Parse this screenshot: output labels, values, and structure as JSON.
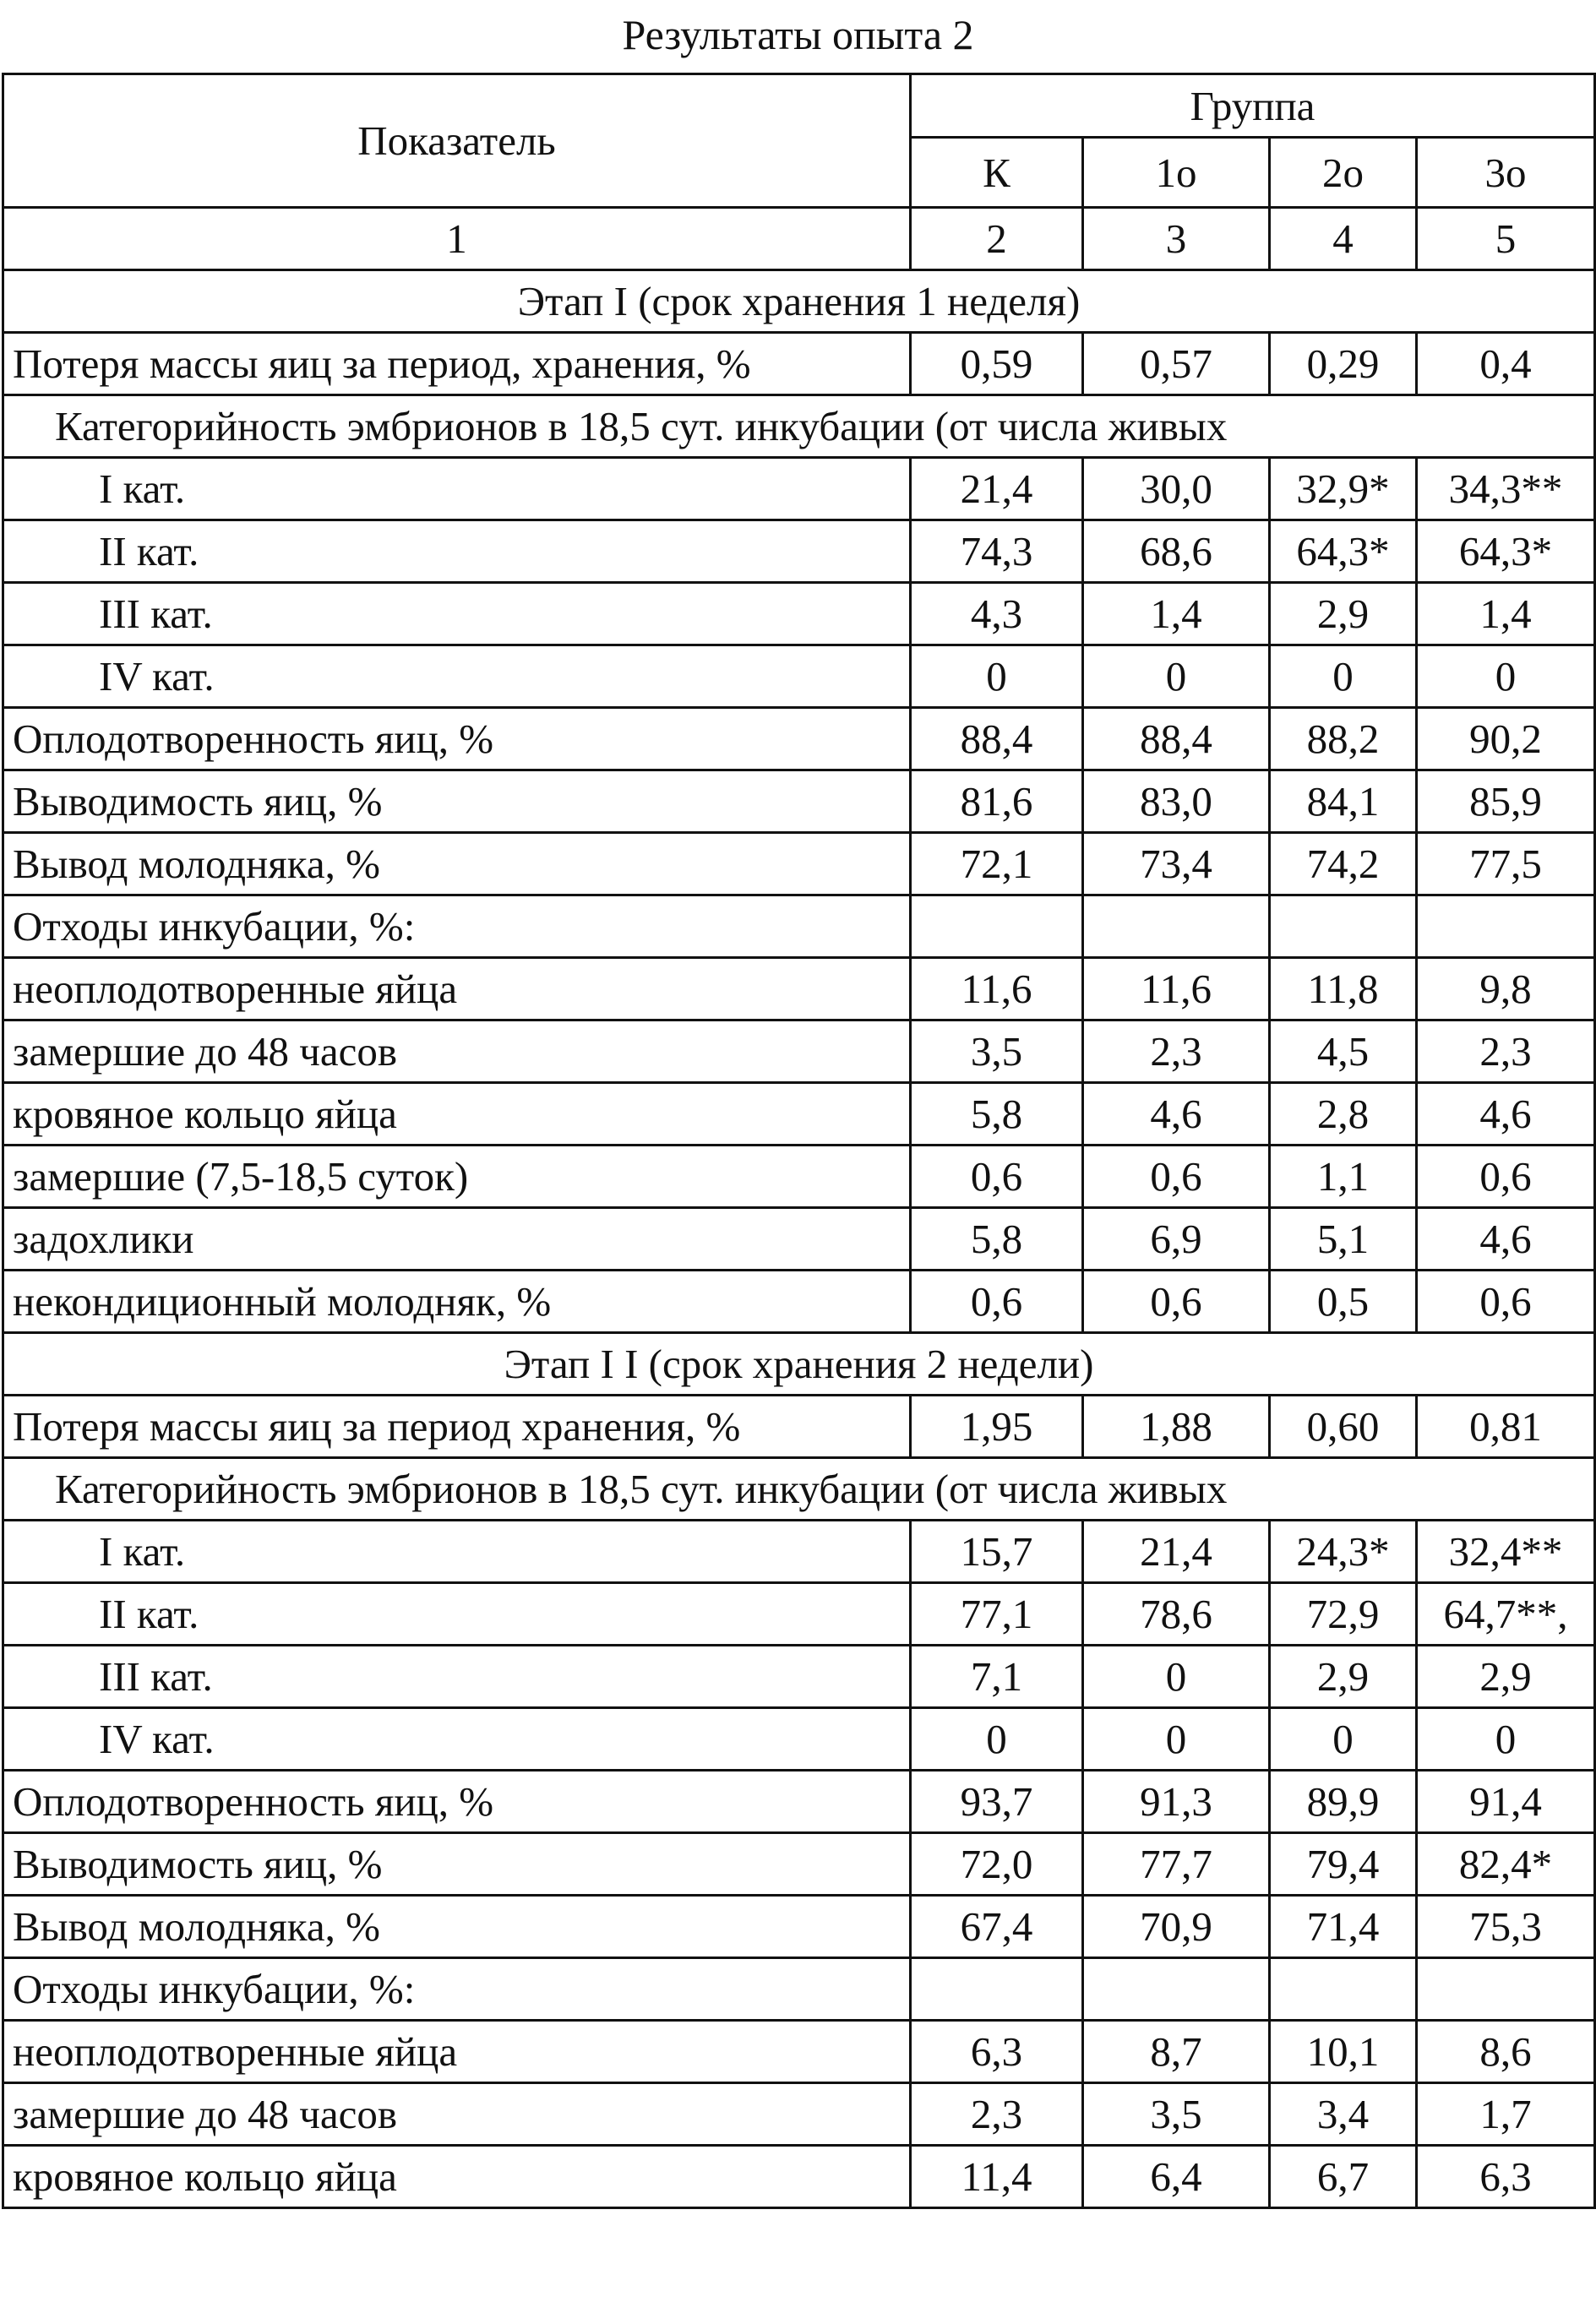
{
  "title": "Результаты опыта 2",
  "header": {
    "indicator": "Показатель",
    "group": "Группа",
    "groups": [
      "К",
      "1о",
      "2о",
      "3о"
    ],
    "numbers": [
      "1",
      "2",
      "3",
      "4",
      "5"
    ]
  },
  "rows": [
    {
      "type": "section",
      "label": "Этап I (срок хранения 1 неделя)"
    },
    {
      "type": "data",
      "label": "Потеря массы яиц за период, хранения, %",
      "values": [
        "0,59",
        "0,57",
        "0,29",
        "0,4"
      ]
    },
    {
      "type": "wide",
      "label": "Категорийность эмбрионов в 18,5 сут. инкубации (от числа живых"
    },
    {
      "type": "indent",
      "label": "I кат.",
      "values": [
        "21,4",
        "30,0",
        "32,9*",
        "34,3**"
      ]
    },
    {
      "type": "indent",
      "label": "II кат.",
      "values": [
        "74,3",
        "68,6",
        "64,3*",
        "64,3*"
      ]
    },
    {
      "type": "indent",
      "label": "III кат.",
      "values": [
        "4,3",
        "1,4",
        "2,9",
        "1,4"
      ]
    },
    {
      "type": "indent",
      "label": "IV кат.",
      "values": [
        "0",
        "0",
        "0",
        "0"
      ]
    },
    {
      "type": "data",
      "label": "Оплодотворенность яиц, %",
      "values": [
        "88,4",
        "88,4",
        "88,2",
        "90,2"
      ]
    },
    {
      "type": "data",
      "label": "Выводимость яиц, %",
      "values": [
        "81,6",
        "83,0",
        "84,1",
        "85,9"
      ]
    },
    {
      "type": "data",
      "label": "Вывод молодняка, %",
      "values": [
        "72,1",
        "73,4",
        "74,2",
        "77,5"
      ]
    },
    {
      "type": "data",
      "label": "Отходы инкубации, %:",
      "values": [
        "",
        "",
        "",
        ""
      ]
    },
    {
      "type": "data",
      "label": "неоплодотворенные яйца",
      "values": [
        "11,6",
        "11,6",
        "11,8",
        "9,8"
      ]
    },
    {
      "type": "data",
      "label": "замершие до 48 часов",
      "values": [
        "3,5",
        "2,3",
        "4,5",
        "2,3"
      ]
    },
    {
      "type": "data",
      "label": "кровяное кольцо яйца",
      "values": [
        "5,8",
        "4,6",
        "2,8",
        "4,6"
      ]
    },
    {
      "type": "data",
      "label": "замершие  (7,5-18,5 суток)",
      "values": [
        "0,6",
        "0,6",
        "1,1",
        "0,6"
      ]
    },
    {
      "type": "data",
      "label": "задохлики",
      "values": [
        "5,8",
        "6,9",
        "5,1",
        "4,6"
      ]
    },
    {
      "type": "data",
      "label": "некондиционный молодняк, %",
      "values": [
        "0,6",
        "0,6",
        "0,5",
        "0,6"
      ]
    },
    {
      "type": "section",
      "label": "Этап I I (срок хранения 2 недели)"
    },
    {
      "type": "data",
      "label": "Потеря массы яиц за период хранения, %",
      "values": [
        "1,95",
        "1,88",
        "0,60",
        "0,81"
      ]
    },
    {
      "type": "wide",
      "label": "Категорийность эмбрионов в 18,5 сут. инкубации (от числа живых"
    },
    {
      "type": "indent",
      "label": "I кат.",
      "values": [
        "15,7",
        "21,4",
        "24,3*",
        "32,4**"
      ]
    },
    {
      "type": "indent",
      "label": "II кат.",
      "values": [
        "77,1",
        "78,6",
        "72,9",
        "64,7**,"
      ]
    },
    {
      "type": "indent",
      "label": "III кат.",
      "values": [
        "7,1",
        "0",
        "2,9",
        "2,9"
      ]
    },
    {
      "type": "indent",
      "label": "IV кат.",
      "values": [
        "0",
        "0",
        "0",
        "0"
      ]
    },
    {
      "type": "data",
      "label": "Оплодотворенность яиц, %",
      "values": [
        "93,7",
        "91,3",
        "89,9",
        "91,4"
      ]
    },
    {
      "type": "data",
      "label": "Выводимость яиц, %",
      "values": [
        "72,0",
        "77,7",
        "79,4",
        "82,4*"
      ]
    },
    {
      "type": "data",
      "label": "Вывод молодняка, %",
      "values": [
        "67,4",
        "70,9",
        "71,4",
        "75,3"
      ]
    },
    {
      "type": "data",
      "label": "Отходы инкубации, %:",
      "values": [
        "",
        "",
        "",
        ""
      ]
    },
    {
      "type": "data",
      "label": "неоплодотворенные яйца",
      "values": [
        "6,3",
        "8,7",
        "10,1",
        "8,6"
      ]
    },
    {
      "type": "data",
      "label": "замершие до 48 часов",
      "values": [
        "2,3",
        "3,5",
        "3,4",
        "1,7"
      ]
    },
    {
      "type": "data",
      "label": "кровяное кольцо яйца",
      "values": [
        "11,4",
        "6,4",
        "6,7",
        "6,3"
      ]
    }
  ]
}
